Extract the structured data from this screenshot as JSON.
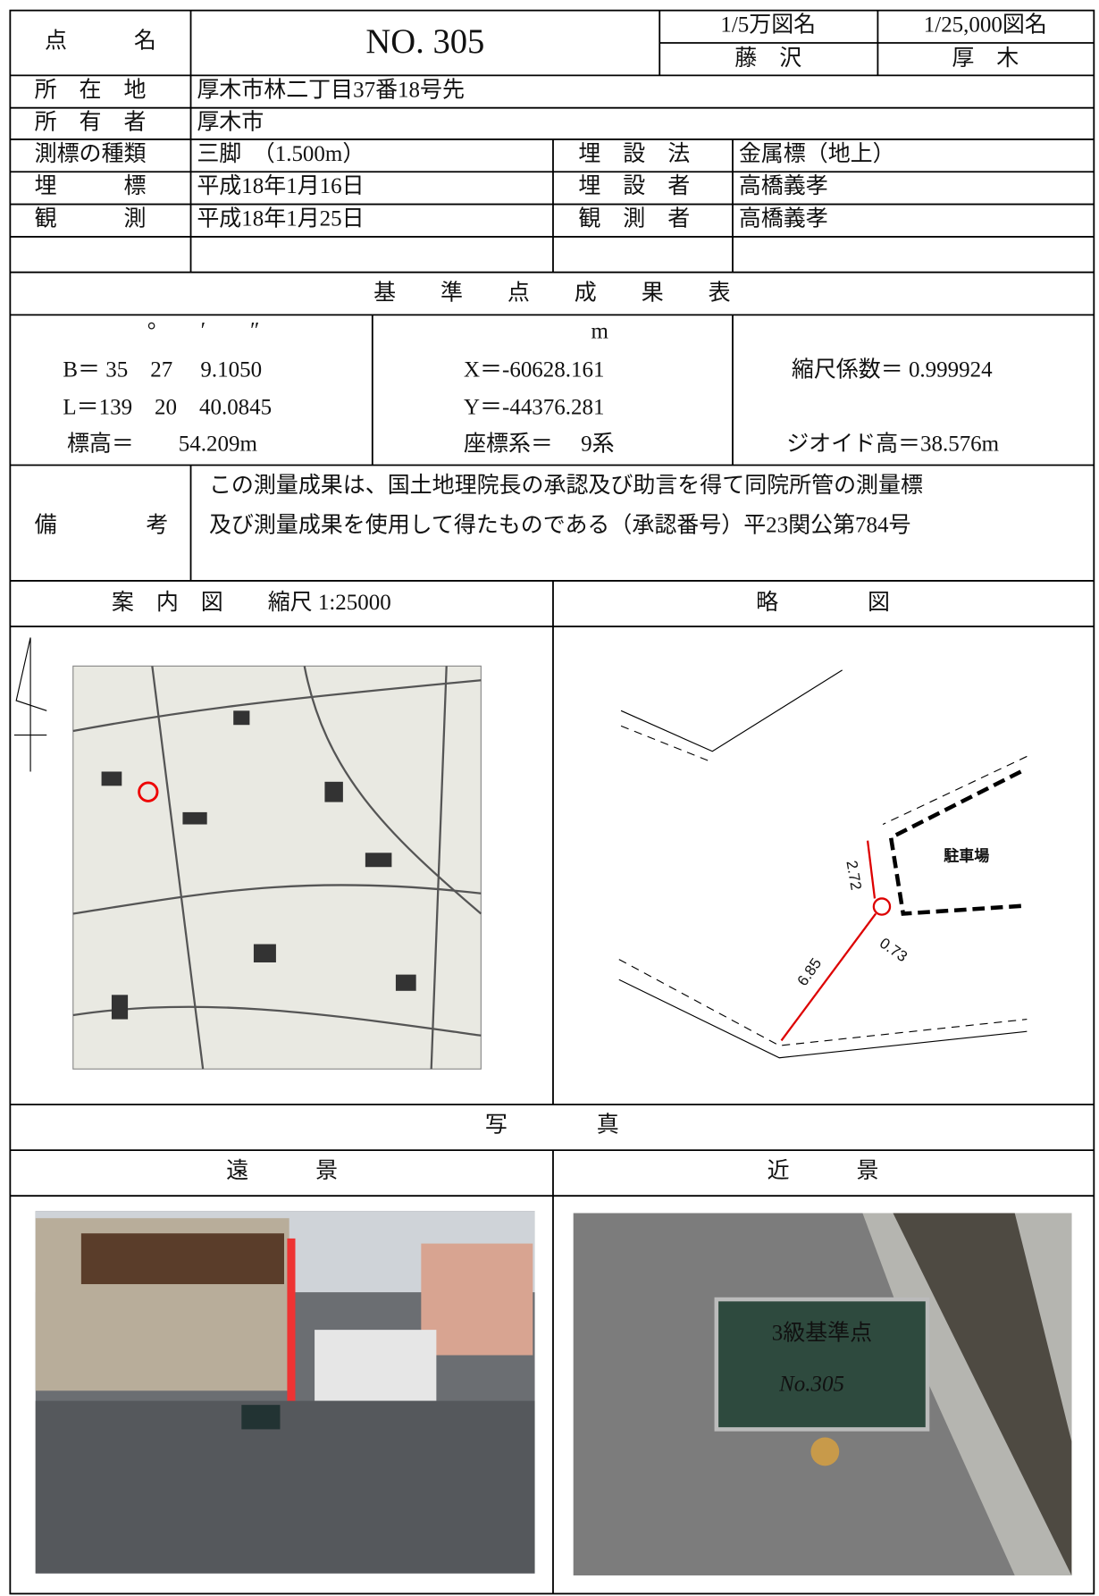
{
  "header": {
    "point_name_label": "点　　　名",
    "point_name": "NO. 305",
    "map50k_label": "1/5万図名",
    "map50k": "藤　沢",
    "map25k_label": "1/25,000図名",
    "map25k": "厚　木"
  },
  "rows": [
    {
      "label": "所　在　地",
      "value": "厚木市林二丁目37番18号先"
    },
    {
      "label": "所　有　者",
      "value": "厚木市"
    },
    {
      "label": "測標の種類",
      "value": "三脚　（1.500m）",
      "label2": "埋　設　法",
      "value2": "金属標（地上）"
    },
    {
      "label": "埋　　　標",
      "value": "平成18年1月16日",
      "label2": "埋　設　者",
      "value2": "高橋義孝"
    },
    {
      "label": "観　　　測",
      "value": "平成18年1月25日",
      "label2": "観　測　者",
      "value2": "高橋義孝"
    }
  ],
  "results": {
    "title": "基　　準　　点　　成　　果　　表",
    "angle_units": "°　　′　　″",
    "b": "B＝ 35　27　 9.1050",
    "l": "L＝139　20　40.0845",
    "elevation": "標高＝　　54.209m",
    "unit": "m",
    "x": "X＝-60628.161",
    "y": "Y＝-44376.281",
    "coord_system": "座標系＝　 9系",
    "scale_factor": "縮尺係数＝ 0.999924",
    "geoid": "ジオイド高＝38.576m"
  },
  "remarks": {
    "label": "備　　　　考",
    "lines": [
      "この測量成果は、国土地理院長の承認及び助言を得て同院所管の測量標",
      "及び測量成果を使用して得たものである（承認番号）平23関公第784号"
    ]
  },
  "maps": {
    "guide_title": "案　内　図　　縮尺 1:25000",
    "sketch_title": "略　　　　図",
    "parking": "駐車場",
    "dist_a": "2.72",
    "dist_b": "0.73",
    "dist_c": "6.85"
  },
  "photos": {
    "title": "写　　　　真",
    "far": "遠　　　景",
    "near": "近　　　景",
    "board_line1": "3級基準点",
    "board_line2": "No.305"
  }
}
